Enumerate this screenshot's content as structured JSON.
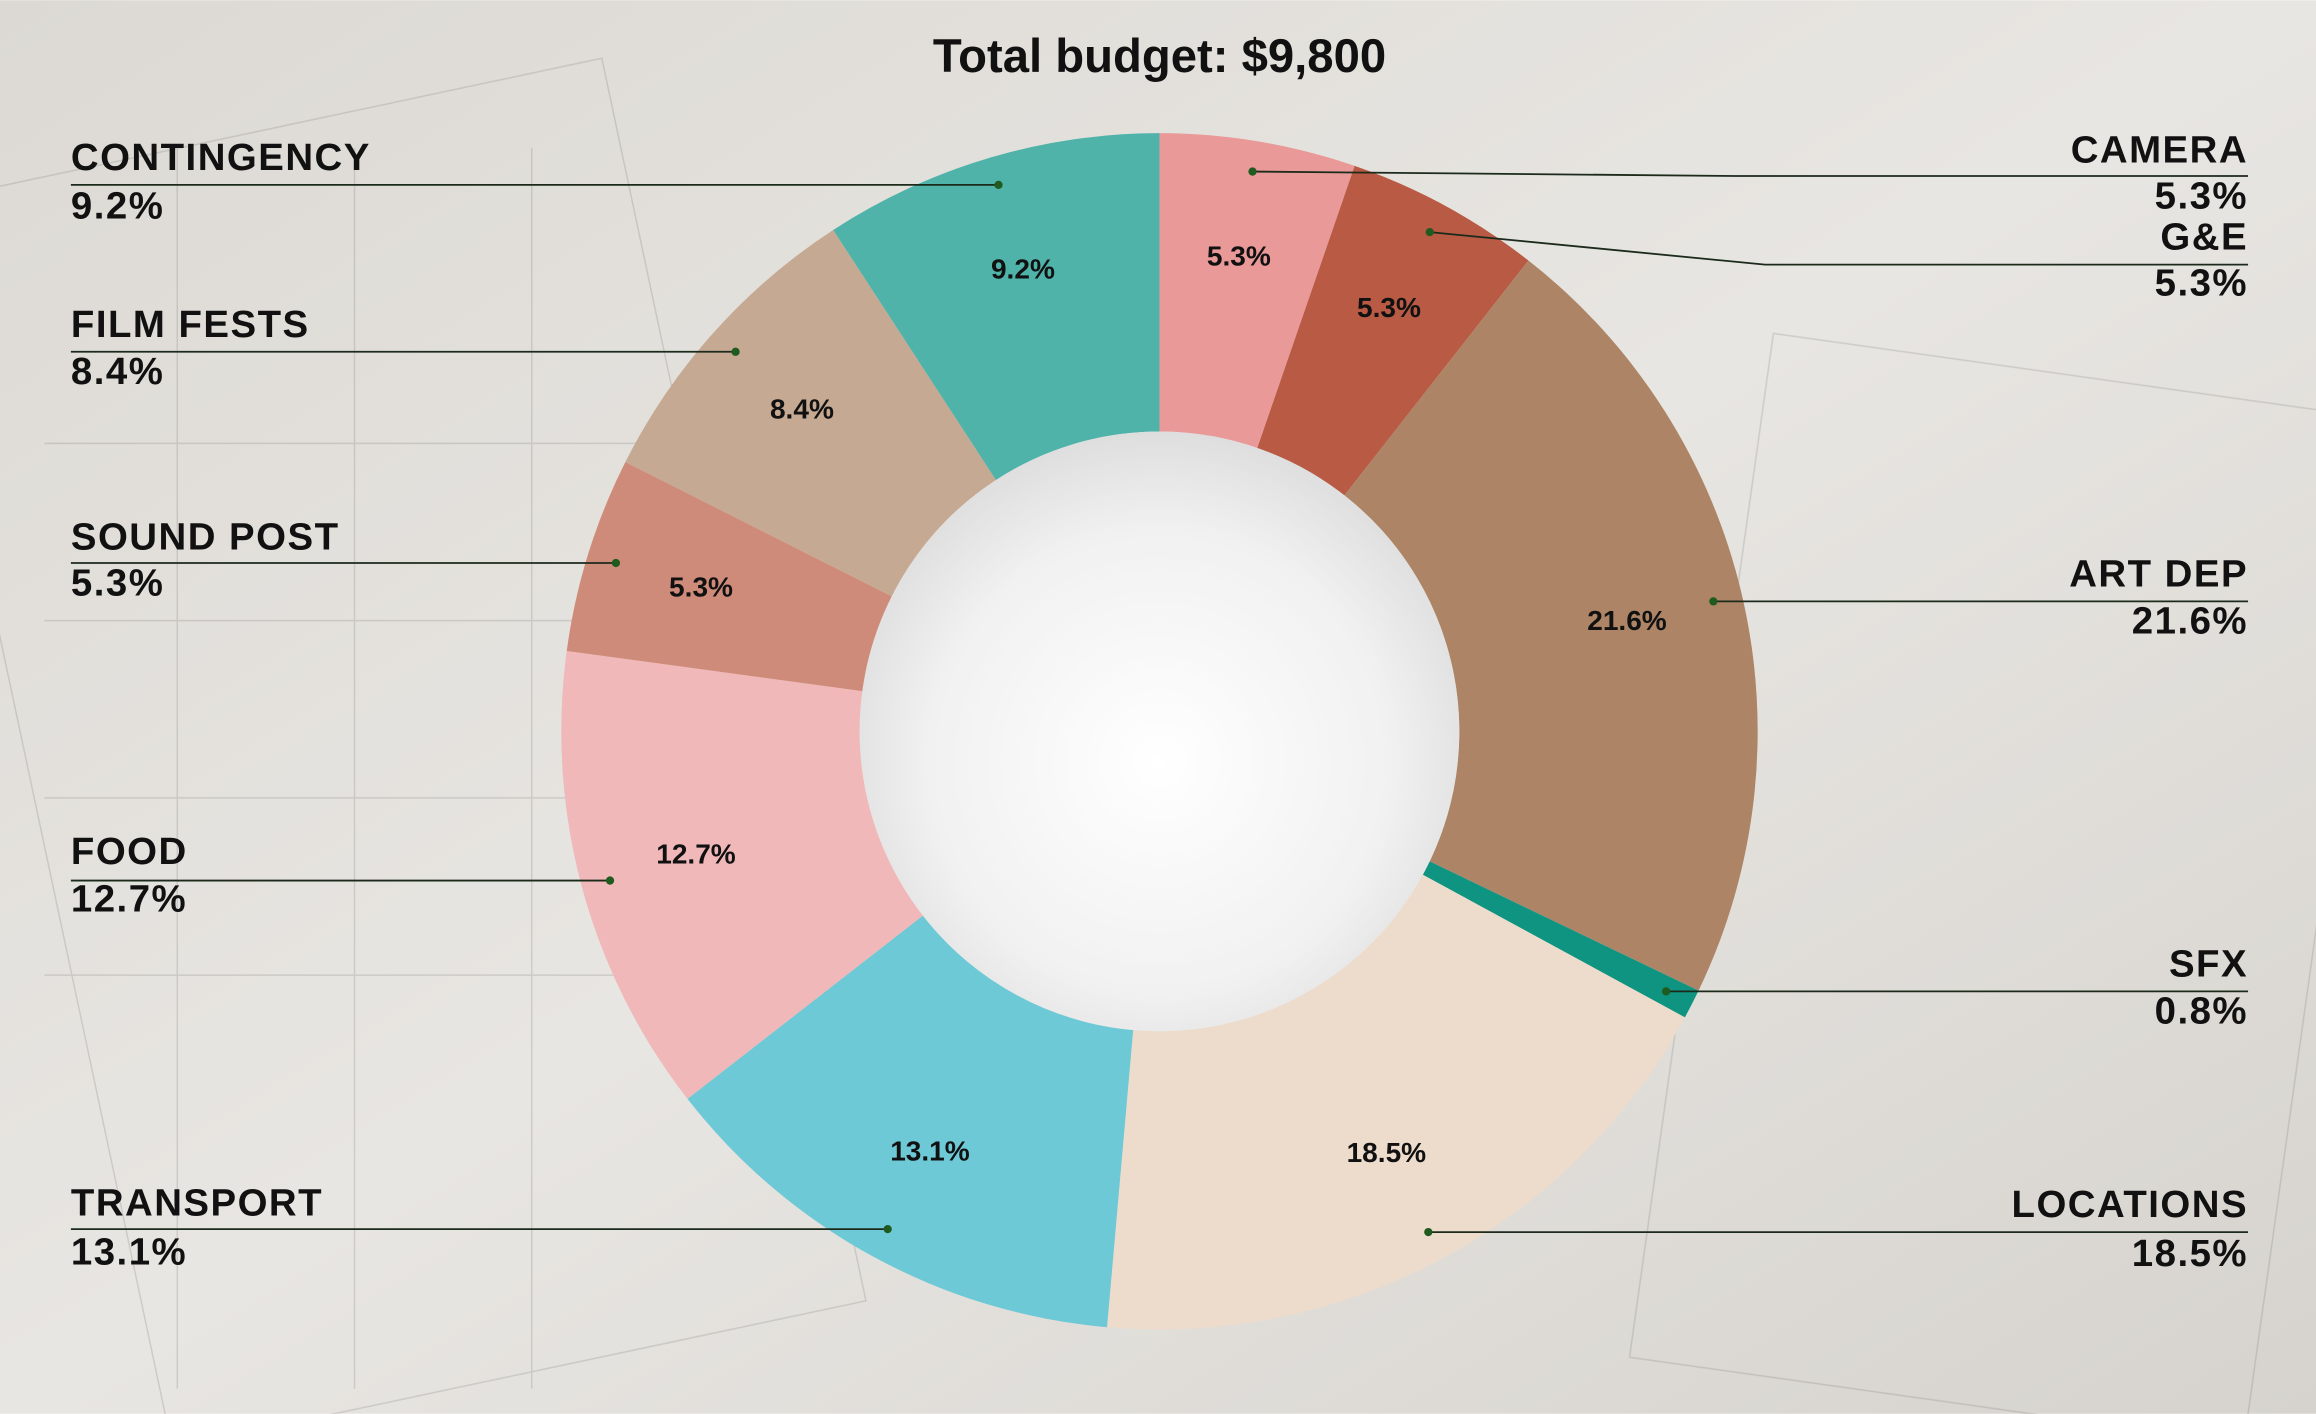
{
  "chart_data": {
    "type": "donut",
    "title": "Total budget: $9,800",
    "categories": [
      "CAMERA",
      "G&E",
      "ART DEP",
      "SFX",
      "LOCATIONS",
      "TRANSPORT",
      "FOOD",
      "SOUND POST",
      "FILM FESTS",
      "CONTINGENCY"
    ],
    "values": [
      5.3,
      5.3,
      21.6,
      0.8,
      18.5,
      13.1,
      12.7,
      5.3,
      8.4,
      9.2
    ],
    "value_labels": [
      "5.3%",
      "5.3%",
      "21.6%",
      "0.8%",
      "18.5%",
      "13.1%",
      "12.7%",
      "5.3%",
      "8.4%",
      "9.2%"
    ],
    "colors": [
      "#ea9999",
      "#b85a44",
      "#ad8566",
      "#0e9481",
      "#eddccb",
      "#6ec9d6",
      "#f0b8b8",
      "#cf8b7a",
      "#c6a993",
      "#4fb3aa"
    ]
  }
}
